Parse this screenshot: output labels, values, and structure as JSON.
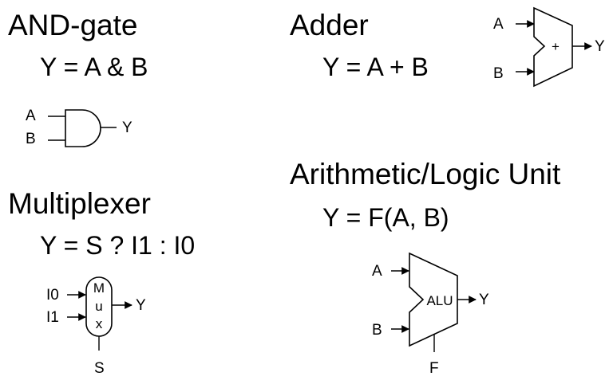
{
  "and_gate": {
    "title": "AND-gate",
    "equation": "Y = A & B",
    "inputs": [
      "A",
      "B"
    ],
    "output": "Y"
  },
  "multiplexer": {
    "title": "Multiplexer",
    "equation": "Y = S ? I1 : I0",
    "inputs": [
      "I0",
      "I1"
    ],
    "output": "Y",
    "select": "S",
    "body_letters": [
      "M",
      "u",
      "x"
    ]
  },
  "adder": {
    "title": "Adder",
    "equation": "Y = A + B",
    "inputs": [
      "A",
      "B"
    ],
    "output": "Y",
    "symbol": "+"
  },
  "alu": {
    "title": "Arithmetic/Logic Unit",
    "equation": "Y = F(A, B)",
    "inputs": [
      "A",
      "B"
    ],
    "output": "Y",
    "control": "F",
    "body_label": "ALU"
  }
}
